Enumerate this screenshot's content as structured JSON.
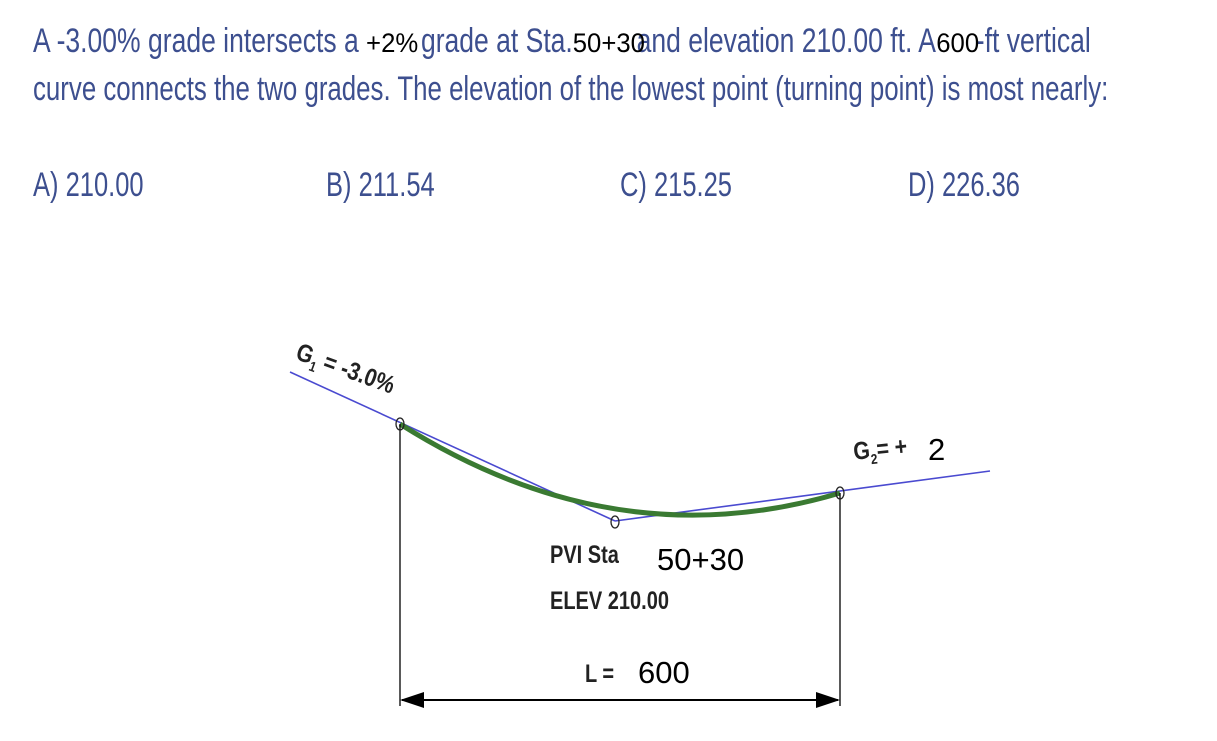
{
  "question": {
    "line1_a": "A -3.00% grade intersects a ",
    "line1_g2": "+2%",
    "line1_b": " grade at Sta.",
    "line1_sta": "50+30",
    "line1_c": "and elevation 210.00 ft.  A",
    "line1_len": "600",
    "line1_d": "-ft vertical",
    "line2": "curve connects the two grades. The elevation of the lowest point (turning point) is most nearly:"
  },
  "options": [
    {
      "label": "A) 210.00"
    },
    {
      "label": "B) 211.54"
    },
    {
      "label": "C) 215.25"
    },
    {
      "label": "D) 226.36"
    }
  ],
  "diagram": {
    "g1_label": "G1 = -3.0%",
    "g1_main": "G",
    "g1_sub": "1",
    "g1_rest": " = -3.0%",
    "g2_main": "G",
    "g2_sub": "2",
    "g2_rest": "= +",
    "g2_value": "2",
    "pvi_sta_label": "PVI Sta",
    "pvi_sta_value": "50+30",
    "pvi_elev": "ELEV 210.00",
    "length_label": "L =",
    "length_value": "600",
    "colors": {
      "tangent": "#4a4ad0",
      "curve": "#3a7a32",
      "text": "#3d4f8f"
    }
  }
}
